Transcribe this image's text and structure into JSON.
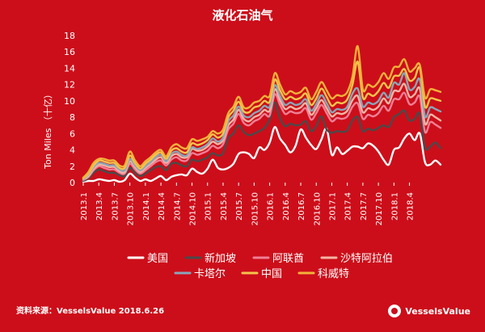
{
  "colors": {
    "background": "#cc0e1a",
    "series": [
      "#ffffff",
      "#4a4a4a",
      "#f07f96",
      "#f4b4a4",
      "#8aa6b8",
      "#f4c44c",
      "#f2b23a"
    ]
  },
  "source_text": "资料来源：VesselsValue 2018.6.26",
  "logo_text": "VesselsValue",
  "chart_data": {
    "type": "line",
    "title": "液化石油气",
    "ylabel": "Ton Miles （十亿）",
    "xlabel": "",
    "ylim": [
      0,
      18
    ],
    "yticks": [
      0,
      2,
      4,
      6,
      8,
      10,
      12,
      14,
      16,
      18
    ],
    "x_tick_labels": [
      "2013.1",
      "2013.4",
      "2013.7",
      "2013.10",
      "2014.1",
      "2014.4",
      "2014.7",
      "2014.10",
      "2015.1",
      "2015.4",
      "2015.7",
      "2015.10",
      "2016.1",
      "2016.4",
      "2016.7",
      "2016.10",
      "2017.1",
      "2017.4",
      "2017.7",
      "2017.10",
      "2018.1",
      "2018.4"
    ],
    "x_range": [
      "2013.1",
      "2018.6"
    ],
    "legend_position": "bottom",
    "grid": false,
    "series": [
      {
        "name": "美国",
        "values": [
          0.1,
          0.2,
          0.2,
          0.4,
          0.3,
          0.2,
          0.3,
          0.1,
          0.3,
          1.1,
          0.6,
          0.2,
          0.4,
          0.2,
          0.5,
          0.8,
          0.3,
          0.7,
          0.9,
          1.0,
          0.9,
          1.7,
          1.3,
          1.1,
          1.7,
          2.8,
          1.8,
          1.6,
          1.8,
          2.3,
          3.5,
          3.7,
          3.5,
          3.0,
          4.3,
          4.0,
          4.9,
          6.8,
          5.4,
          4.6,
          3.7,
          4.5,
          6.5,
          5.5,
          4.6,
          4.1,
          5.3,
          6.6,
          3.4,
          4.3,
          3.5,
          3.9,
          4.4,
          4.4,
          4.2,
          4.8,
          4.5,
          3.8,
          2.8,
          2.2,
          4.0,
          4.3,
          5.4,
          6.0,
          5.2,
          6.0,
          2.5,
          2.2,
          2.7,
          2.2
        ]
      },
      {
        "name": "新加坡",
        "values": [
          0.2,
          0.5,
          1.2,
          1.6,
          1.4,
          1.2,
          1.2,
          0.9,
          0.8,
          1.8,
          1.2,
          0.8,
          1.1,
          1.5,
          1.9,
          2.0,
          1.5,
          2.3,
          2.4,
          2.1,
          2.0,
          2.8,
          2.6,
          2.8,
          3.1,
          3.6,
          3.3,
          3.6,
          5.4,
          6.0,
          7.0,
          6.2,
          5.8,
          6.0,
          6.3,
          6.7,
          7.7,
          9.8,
          7.9,
          6.9,
          7.2,
          7.0,
          7.1,
          7.5,
          6.3,
          6.9,
          8.1,
          6.5,
          6.1,
          6.3,
          6.2,
          6.4,
          7.6,
          8.0,
          6.3,
          6.6,
          6.4,
          6.7,
          7.0,
          6.8,
          8.0,
          8.4,
          8.8,
          7.6,
          7.8,
          8.4,
          4.3,
          4.4,
          4.9,
          4.2
        ]
      },
      {
        "name": "阿联酋",
        "values": [
          0.3,
          0.7,
          1.5,
          2.0,
          1.8,
          1.6,
          1.6,
          1.2,
          1.1,
          2.3,
          1.6,
          1.1,
          1.5,
          2.0,
          2.5,
          2.7,
          2.1,
          2.8,
          3.1,
          2.7,
          2.7,
          3.6,
          3.4,
          3.6,
          3.9,
          4.5,
          4.2,
          4.7,
          6.5,
          7.2,
          8.4,
          7.3,
          7.0,
          7.5,
          7.8,
          8.4,
          8.2,
          10.8,
          9.5,
          8.4,
          8.7,
          8.5,
          8.6,
          9.1,
          7.7,
          8.5,
          9.5,
          8.5,
          7.5,
          7.9,
          7.8,
          8.1,
          9.3,
          9.7,
          7.8,
          8.3,
          8.1,
          8.5,
          9.4,
          8.8,
          10.2,
          10.2,
          11.0,
          9.6,
          9.8,
          10.5,
          6.2,
          7.4,
          7.1,
          6.7
        ]
      },
      {
        "name": "沙特阿拉伯",
        "values": [
          0.4,
          0.8,
          1.7,
          2.2,
          2.1,
          1.9,
          1.9,
          1.4,
          1.3,
          2.6,
          1.9,
          1.3,
          1.8,
          2.3,
          2.8,
          3.1,
          2.4,
          3.2,
          3.5,
          3.1,
          3.1,
          4.1,
          3.9,
          4.0,
          4.4,
          5.0,
          4.7,
          5.2,
          7.0,
          7.7,
          8.9,
          7.8,
          7.5,
          8.0,
          8.3,
          8.9,
          8.8,
          11.4,
          10.1,
          9.0,
          9.3,
          9.0,
          9.2,
          9.7,
          8.3,
          9.1,
          10.1,
          9.1,
          8.1,
          8.5,
          8.4,
          8.8,
          10.1,
          10.6,
          8.6,
          9.1,
          8.9,
          9.3,
          10.3,
          9.7,
          11.2,
          11.2,
          12.1,
          10.5,
          10.8,
          11.5,
          7.2,
          8.3,
          8.0,
          7.6
        ]
      },
      {
        "name": "卡塔尔",
        "values": [
          0.4,
          1.0,
          1.9,
          2.4,
          2.3,
          2.1,
          2.1,
          1.6,
          1.5,
          2.9,
          2.1,
          1.5,
          2.0,
          2.5,
          3.1,
          3.4,
          2.6,
          3.5,
          3.8,
          3.4,
          3.3,
          4.3,
          4.1,
          4.3,
          4.7,
          5.4,
          5.0,
          5.5,
          7.5,
          8.2,
          9.3,
          8.2,
          8.0,
          8.5,
          8.8,
          9.4,
          9.3,
          11.9,
          10.6,
          9.5,
          9.8,
          9.5,
          9.7,
          10.2,
          8.8,
          9.6,
          10.7,
          9.7,
          8.6,
          9.0,
          8.9,
          9.3,
          10.9,
          11.5,
          9.3,
          9.8,
          9.6,
          10.0,
          11.0,
          10.4,
          12.2,
          12.0,
          13.4,
          11.4,
          11.7,
          12.6,
          8.1,
          9.2,
          9.0,
          8.7
        ]
      },
      {
        "name": "中国",
        "values": [
          0.5,
          1.1,
          2.1,
          2.7,
          2.6,
          2.4,
          2.4,
          1.8,
          1.8,
          3.3,
          2.4,
          1.7,
          2.3,
          2.8,
          3.4,
          3.7,
          2.9,
          3.9,
          4.2,
          3.8,
          3.7,
          4.8,
          4.6,
          4.8,
          5.2,
          5.9,
          5.5,
          6.0,
          8.0,
          8.8,
          9.9,
          8.7,
          8.6,
          9.2,
          9.4,
          10.0,
          9.9,
          12.6,
          11.3,
          10.2,
          10.5,
          10.2,
          10.4,
          10.9,
          9.5,
          10.3,
          11.5,
          10.5,
          9.4,
          9.8,
          9.7,
          10.2,
          12.0,
          14.8,
          10.4,
          10.9,
          10.6,
          11.2,
          12.2,
          11.6,
          13.0,
          13.1,
          13.9,
          12.5,
          12.8,
          14.0,
          9.3,
          10.3,
          10.2,
          10.0
        ]
      },
      {
        "name": "科威特",
        "values": [
          0.6,
          1.3,
          2.4,
          2.9,
          2.9,
          2.7,
          2.7,
          2.1,
          2.1,
          3.8,
          2.7,
          2.0,
          2.6,
          3.1,
          3.7,
          4.0,
          3.2,
          4.3,
          4.7,
          4.3,
          4.2,
          5.3,
          5.1,
          5.3,
          5.6,
          6.3,
          6.0,
          6.5,
          8.5,
          9.3,
          10.5,
          9.2,
          9.2,
          9.8,
          10.0,
          10.6,
          10.6,
          13.4,
          12.0,
          10.8,
          11.2,
          10.9,
          11.1,
          11.6,
          10.2,
          11.1,
          12.3,
          11.3,
          10.3,
          10.7,
          10.6,
          11.1,
          13.0,
          16.7,
          11.4,
          12.0,
          11.7,
          12.3,
          13.4,
          12.7,
          14.1,
          14.2,
          15.1,
          13.6,
          14.0,
          14.4,
          10.4,
          11.4,
          11.3,
          11.1
        ]
      }
    ]
  }
}
